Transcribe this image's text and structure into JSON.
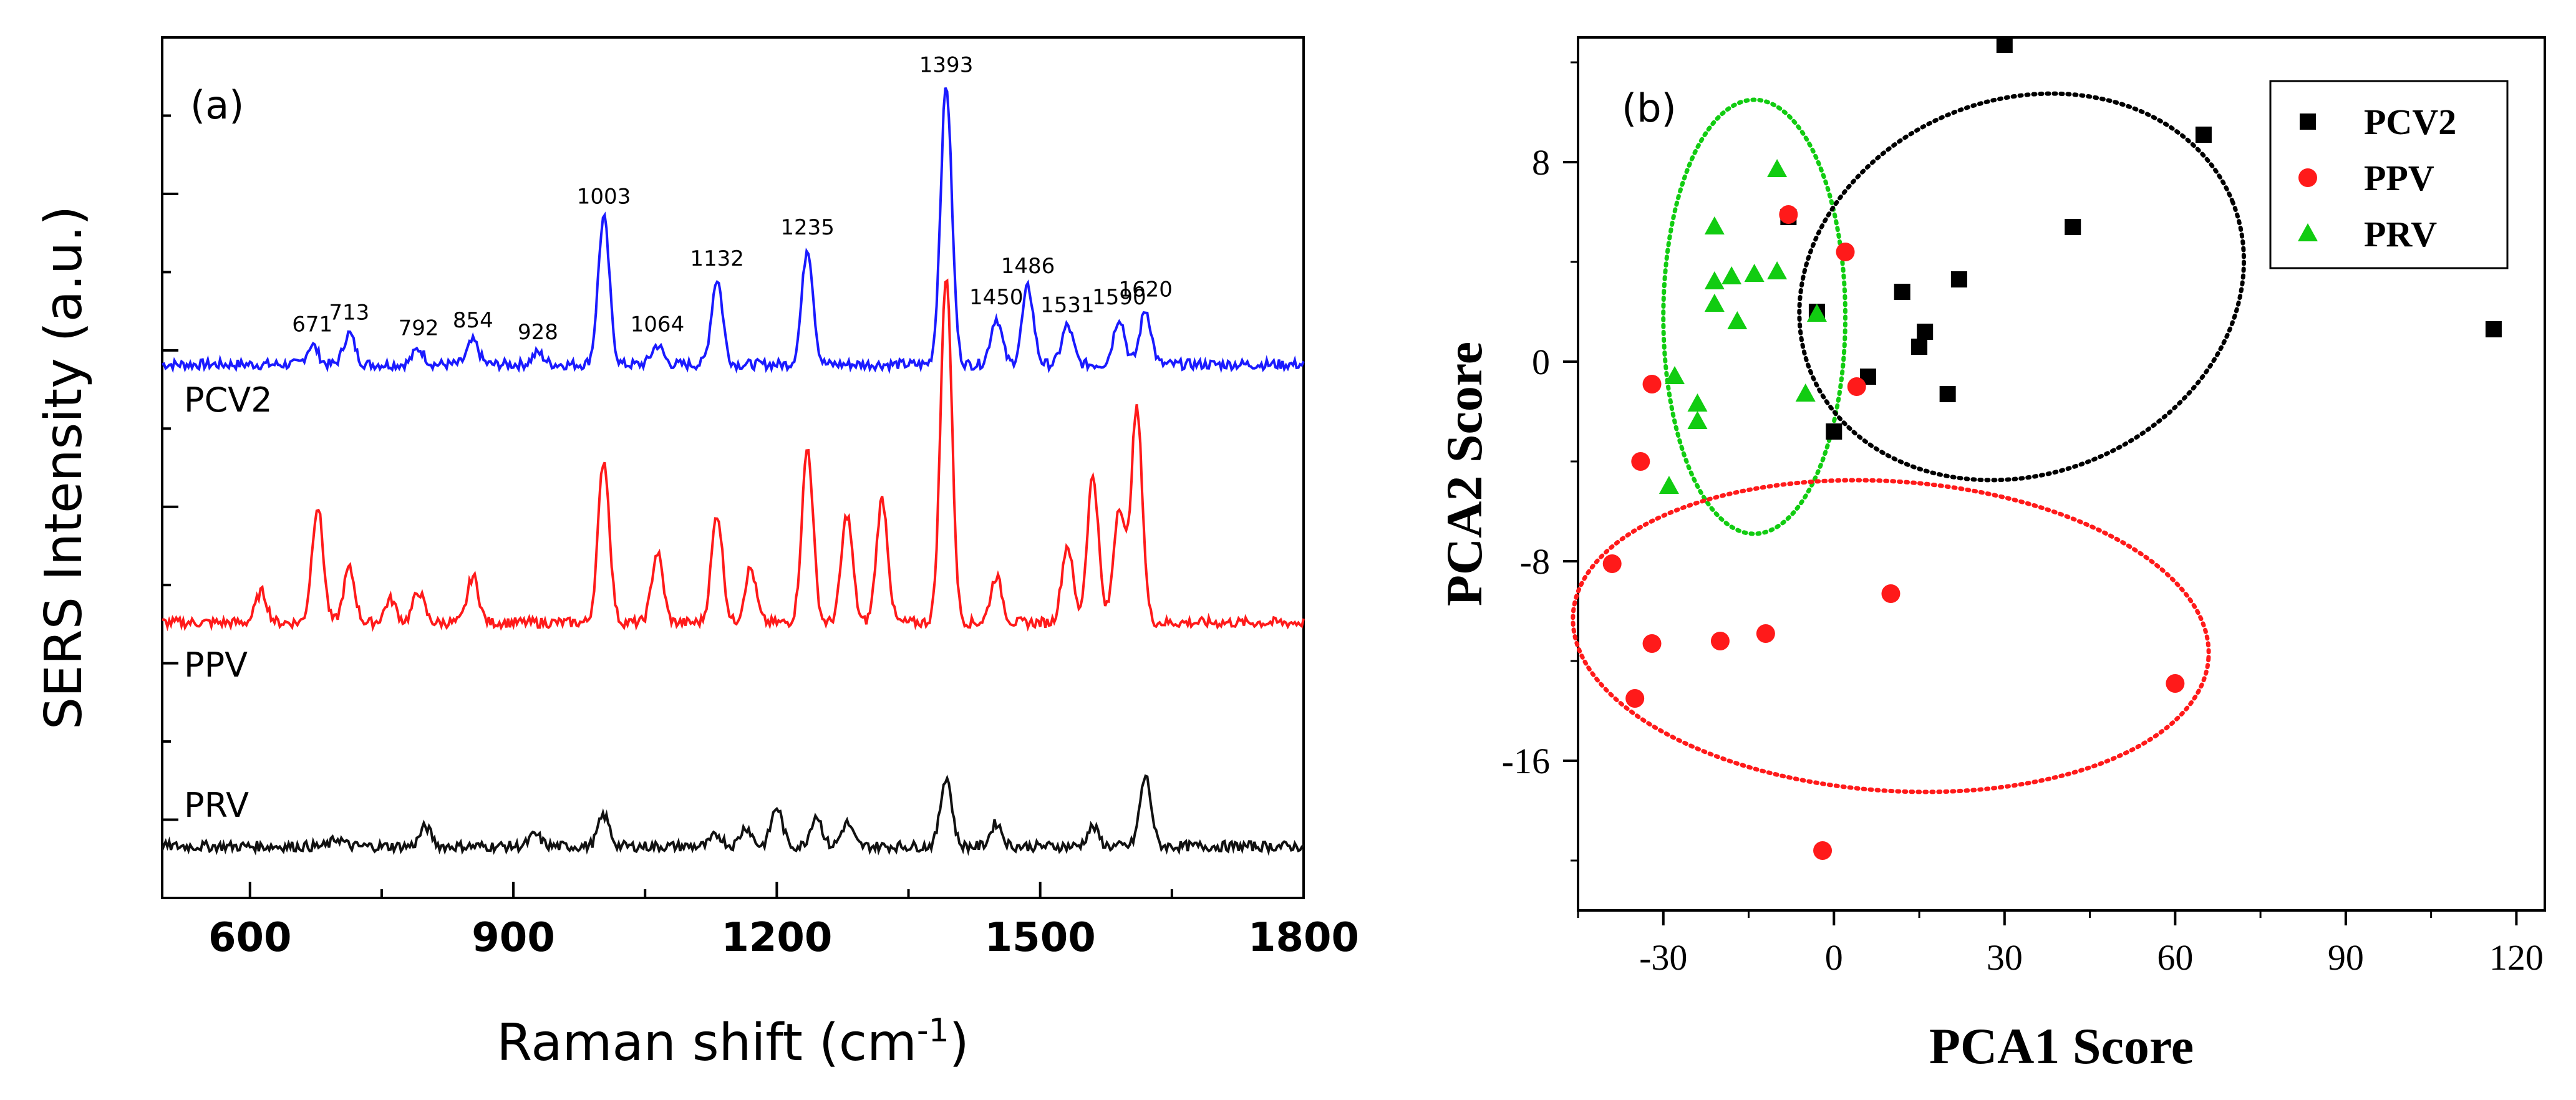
{
  "chart_data": [
    {
      "panel": "(a)",
      "type": "line",
      "xlabel_main": "Raman shift (cm",
      "xlabel_sup": "-1",
      "xlabel_end": ")",
      "ylabel": "SERS Intensity (a.u.)",
      "xlim": [
        500,
        1800
      ],
      "xticks": [
        "600",
        "900",
        "1200",
        "1500",
        "1800"
      ],
      "series": [
        {
          "name": "PCV2",
          "color": "#1a1aff",
          "baseline": 0.55,
          "offset": 0.62,
          "peaks": [
            [
              671,
              0.05
            ],
            [
              713,
              0.08
            ],
            [
              792,
              0.04
            ],
            [
              854,
              0.06
            ],
            [
              928,
              0.03
            ],
            [
              1003,
              0.38
            ],
            [
              1064,
              0.05
            ],
            [
              1132,
              0.22
            ],
            [
              1235,
              0.3
            ],
            [
              1393,
              0.72
            ],
            [
              1450,
              0.12
            ],
            [
              1486,
              0.2
            ],
            [
              1531,
              0.1
            ],
            [
              1590,
              0.12
            ],
            [
              1620,
              0.14
            ]
          ],
          "labels": [
            "671",
            "713",
            "792",
            "854",
            "928",
            "1003",
            "1064",
            "1132",
            "1235",
            "1393",
            "1450",
            "1486",
            "1531",
            "1590",
            "1620"
          ]
        },
        {
          "name": "PPV",
          "color": "#ff1a1a",
          "baseline": 0.28,
          "offset": 0.32,
          "peaks": [
            [
              613,
              0.08
            ],
            [
              677,
              0.3
            ],
            [
              713,
              0.14
            ],
            [
              760,
              0.06
            ],
            [
              792,
              0.08
            ],
            [
              854,
              0.12
            ],
            [
              1003,
              0.42
            ],
            [
              1064,
              0.18
            ],
            [
              1132,
              0.28
            ],
            [
              1170,
              0.14
            ],
            [
              1235,
              0.45
            ],
            [
              1280,
              0.28
            ],
            [
              1320,
              0.32
            ],
            [
              1393,
              0.9
            ],
            [
              1450,
              0.12
            ],
            [
              1531,
              0.2
            ],
            [
              1560,
              0.38
            ],
            [
              1590,
              0.3
            ],
            [
              1610,
              0.55
            ]
          ]
        },
        {
          "name": "PRV",
          "color": "#111111",
          "baseline": 0.0,
          "offset": 0.06,
          "peaks": [
            [
              700,
              0.02
            ],
            [
              800,
              0.05
            ],
            [
              925,
              0.03
            ],
            [
              1003,
              0.08
            ],
            [
              1132,
              0.03
            ],
            [
              1165,
              0.05
            ],
            [
              1200,
              0.1
            ],
            [
              1245,
              0.08
            ],
            [
              1280,
              0.06
            ],
            [
              1393,
              0.18
            ],
            [
              1450,
              0.06
            ],
            [
              1560,
              0.05
            ],
            [
              1620,
              0.18
            ]
          ]
        }
      ]
    },
    {
      "panel": "(b)",
      "type": "scatter",
      "xlabel": "PCA1 Score",
      "ylabel": "PCA2 Score",
      "xlim": [
        -45,
        125
      ],
      "ylim": [
        -22,
        13
      ],
      "xticks": [
        -30,
        0,
        30,
        60,
        90,
        120
      ],
      "yticks": [
        -16,
        -8,
        0,
        8
      ],
      "legend": [
        {
          "name": "PCV2",
          "color": "#000000",
          "marker": "square"
        },
        {
          "name": "PPV",
          "color": "#ff1a1a",
          "marker": "circle"
        },
        {
          "name": "PRV",
          "color": "#11cc11",
          "marker": "triangle"
        }
      ],
      "series": [
        {
          "name": "PCV2",
          "points": [
            [
              30,
              12.7
            ],
            [
              65,
              9.1
            ],
            [
              42,
              5.4
            ],
            [
              -8,
              5.8
            ],
            [
              12,
              2.8
            ],
            [
              22,
              3.3
            ],
            [
              16,
              1.2
            ],
            [
              15,
              0.6
            ],
            [
              -3,
              2.0
            ],
            [
              6,
              -0.6
            ],
            [
              20,
              -1.3
            ],
            [
              0,
              -2.8
            ],
            [
              116,
              1.3
            ]
          ]
        },
        {
          "name": "PPV",
          "points": [
            [
              -8,
              5.9
            ],
            [
              2,
              4.4
            ],
            [
              -32,
              -0.9
            ],
            [
              -34,
              -4.0
            ],
            [
              4,
              -1.0
            ],
            [
              -39,
              -8.1
            ],
            [
              10,
              -9.3
            ],
            [
              -32,
              -11.3
            ],
            [
              -20,
              -11.2
            ],
            [
              -12,
              -10.9
            ],
            [
              -35,
              -13.5
            ],
            [
              60,
              -12.9
            ],
            [
              -2,
              -19.6
            ]
          ]
        },
        {
          "name": "PRV",
          "points": [
            [
              -10,
              7.7
            ],
            [
              -21,
              5.4
            ],
            [
              -14,
              3.5
            ],
            [
              -18,
              3.4
            ],
            [
              -10,
              3.6
            ],
            [
              -21,
              3.2
            ],
            [
              -21,
              2.3
            ],
            [
              -17,
              1.6
            ],
            [
              -3,
              1.9
            ],
            [
              -28,
              -0.6
            ],
            [
              -24,
              -1.7
            ],
            [
              -24,
              -2.4
            ],
            [
              -5,
              -1.3
            ],
            [
              -29,
              -5.0
            ]
          ]
        }
      ],
      "ellipses": [
        {
          "name": "PRV",
          "color": "#11cc11",
          "cx": -14,
          "cy": 1.8,
          "rx": 16,
          "ry": 8.7,
          "rot": 0
        },
        {
          "name": "PCV2",
          "color": "#000000",
          "cx": 33,
          "cy": 3.0,
          "rx": 40,
          "ry": 7.5,
          "rot": 22
        },
        {
          "name": "PPV",
          "color": "#ff1a1a",
          "cx": 10,
          "cy": -11.0,
          "rx": 56,
          "ry": 6.2,
          "rot": -4
        }
      ]
    }
  ]
}
